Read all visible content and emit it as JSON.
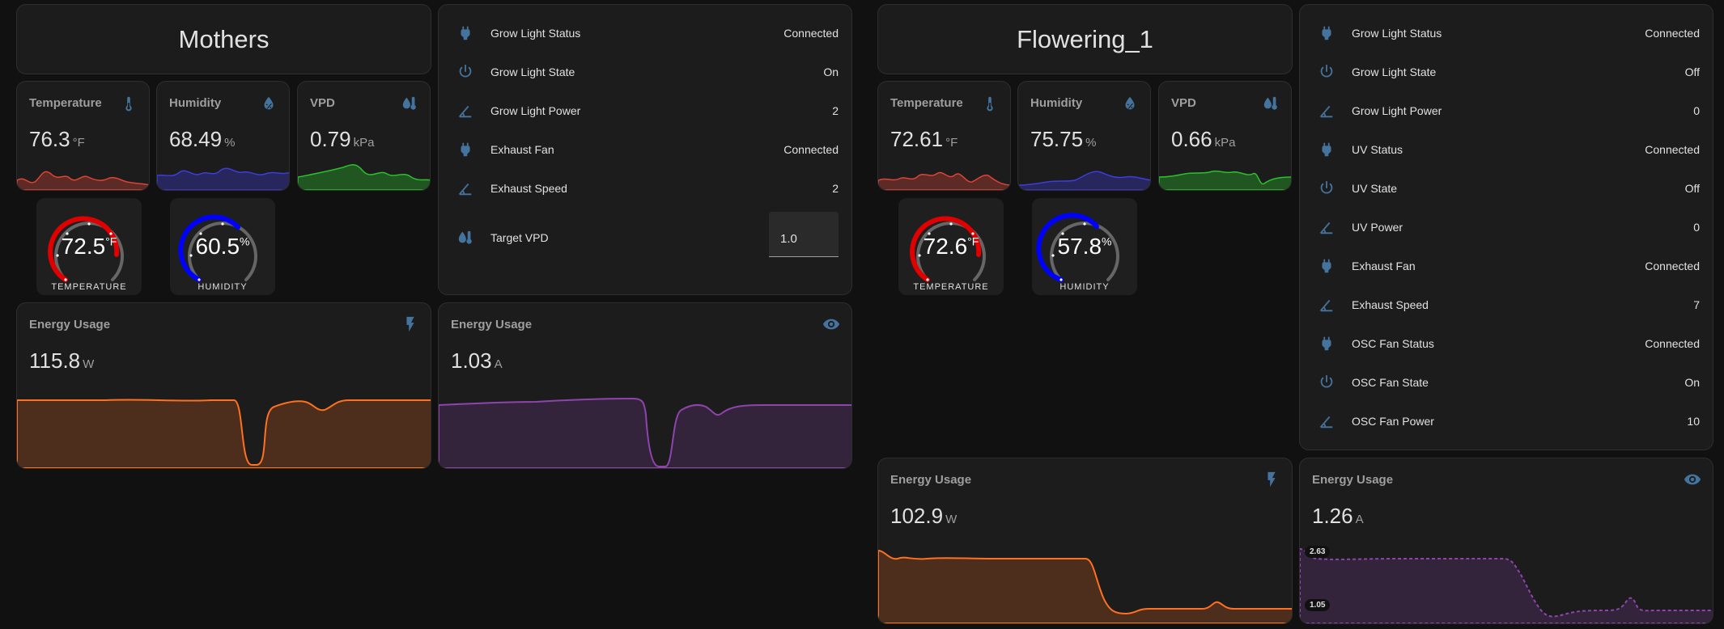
{
  "colors": {
    "accent_icon": "#44739e",
    "temp": "#db4437",
    "humidity": "#3d3ddb",
    "vpd": "#2cbf2c",
    "watts": "#ff7020",
    "amps": "#8e44ad"
  },
  "mothers": {
    "title": "Mothers",
    "temperature": {
      "label": "Temperature",
      "value": "76.3",
      "unit": "°F",
      "icon": "thermometer-icon"
    },
    "humidity": {
      "label": "Humidity",
      "value": "68.49",
      "unit": "%",
      "icon": "water-percent-icon"
    },
    "vpd": {
      "label": "VPD",
      "value": "0.79",
      "unit": "kPa",
      "icon": "water-thermometer-icon"
    },
    "temp_gauge": {
      "value": "72.5",
      "unit": "°F",
      "label": "TEMPERATURE",
      "level": 0.725
    },
    "hum_gauge": {
      "value": "60.5",
      "unit": "%",
      "label": "HUMIDITY",
      "level": 0.605
    },
    "entities": [
      {
        "label": "Grow Light Status",
        "value": "Connected",
        "icon": "plug-icon"
      },
      {
        "label": "Grow Light State",
        "value": "On",
        "icon": "power-icon"
      },
      {
        "label": "Grow Light Power",
        "value": "2",
        "icon": "angle-icon"
      },
      {
        "label": "Exhaust Fan",
        "value": "Connected",
        "icon": "plug-icon"
      },
      {
        "label": "Exhaust Speed",
        "value": "2",
        "icon": "angle-icon"
      }
    ],
    "target_vpd": {
      "label": "Target VPD",
      "value": "1.0",
      "icon": "water-thermometer-icon"
    },
    "energy_watts": {
      "label": "Energy Usage",
      "value": "115.8",
      "unit": "W",
      "icon": "flash-icon"
    },
    "energy_amps": {
      "label": "Energy Usage",
      "value": "1.03",
      "unit": "A",
      "icon": "eye-icon"
    }
  },
  "flowering": {
    "title": "Flowering_1",
    "temperature": {
      "label": "Temperature",
      "value": "72.61",
      "unit": "°F",
      "icon": "thermometer-icon"
    },
    "humidity": {
      "label": "Humidity",
      "value": "75.75",
      "unit": "%",
      "icon": "water-percent-icon"
    },
    "vpd": {
      "label": "VPD",
      "value": "0.66",
      "unit": "kPa",
      "icon": "water-thermometer-icon"
    },
    "temp_gauge": {
      "value": "72.6",
      "unit": "°F",
      "label": "TEMPERATURE",
      "level": 0.726
    },
    "hum_gauge": {
      "value": "57.8",
      "unit": "%",
      "label": "HUMIDITY",
      "level": 0.578
    },
    "entities": [
      {
        "label": "Grow Light Status",
        "value": "Connected",
        "icon": "plug-icon"
      },
      {
        "label": "Grow Light State",
        "value": "Off",
        "icon": "power-icon"
      },
      {
        "label": "Grow Light Power",
        "value": "0",
        "icon": "angle-icon"
      },
      {
        "label": "UV Status",
        "value": "Connected",
        "icon": "plug-icon"
      },
      {
        "label": "UV State",
        "value": "Off",
        "icon": "power-icon"
      },
      {
        "label": "UV Power",
        "value": "0",
        "icon": "angle-icon"
      },
      {
        "label": "Exhaust Fan",
        "value": "Connected",
        "icon": "plug-icon"
      },
      {
        "label": "Exhaust Speed",
        "value": "7",
        "icon": "angle-icon"
      },
      {
        "label": "OSC Fan Status",
        "value": "Connected",
        "icon": "plug-icon"
      },
      {
        "label": "OSC Fan State",
        "value": "On",
        "icon": "power-icon"
      },
      {
        "label": "OSC Fan Power",
        "value": "10",
        "icon": "angle-icon"
      }
    ],
    "energy_watts": {
      "label": "Energy Usage",
      "value": "102.9",
      "unit": "W",
      "icon": "flash-icon"
    },
    "energy_amps": {
      "label": "Energy Usage",
      "value": "1.26",
      "unit": "A",
      "icon": "eye-icon",
      "axis_max": "2.63",
      "axis_min": "1.05"
    }
  }
}
